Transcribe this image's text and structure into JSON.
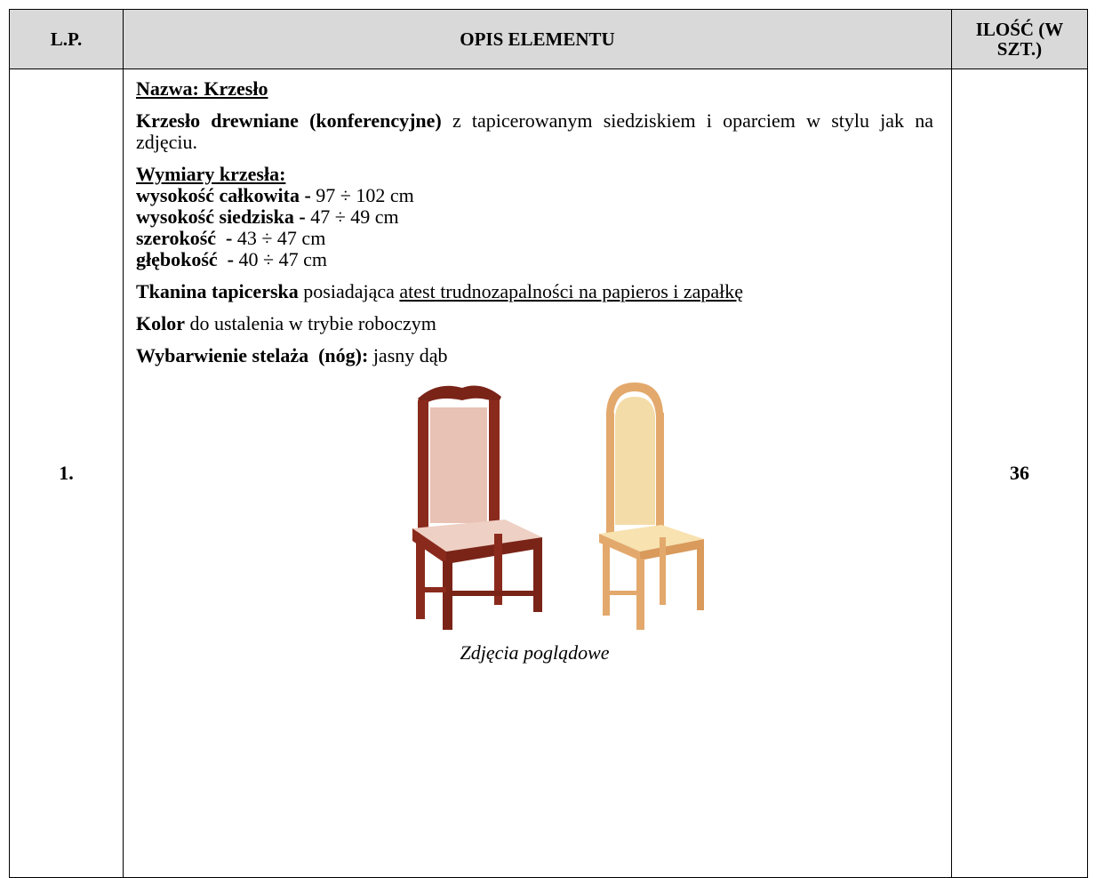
{
  "table": {
    "header": [
      "L.P.",
      "OPIS ELEMENTU",
      "ILOŚĆ (W SZT.)"
    ],
    "row": {
      "lp": "1.",
      "quantity": "36",
      "description": {
        "name": "Nazwa: Krzesło",
        "intro": {
          "bold": "Krzesło drewniane (konferencyjne)",
          "text": "z tapicerowanym siedziskiem i oparciem w stylu jak na zdjęciu."
        },
        "dimensions_heading": "Wymiary krzesła:",
        "dimensions": [
          {
            "label": "wysokość całkowita -",
            "value": "97 ÷ 102 cm"
          },
          {
            "label": "wysokość siedziska -",
            "value": "47 ÷ 49 cm"
          },
          {
            "label": "szerokość  -",
            "value": "43 ÷ 47 cm"
          },
          {
            "label": "głębokość  -",
            "value": "40 ÷ 47 cm"
          }
        ],
        "fabric": {
          "bold": "Tkanina tapicerska",
          "text": "posiadająca",
          "underlined": "atest trudnozapalności na papieros i zapałkę"
        },
        "color": {
          "bold": "Kolor",
          "text": "do ustalenia w trybie roboczym"
        },
        "frame": {
          "bold": "Wybarwienie stelaża  (nóg):",
          "text": "jasny dąb"
        },
        "caption": "Zdjęcia poglądowe"
      }
    }
  }
}
